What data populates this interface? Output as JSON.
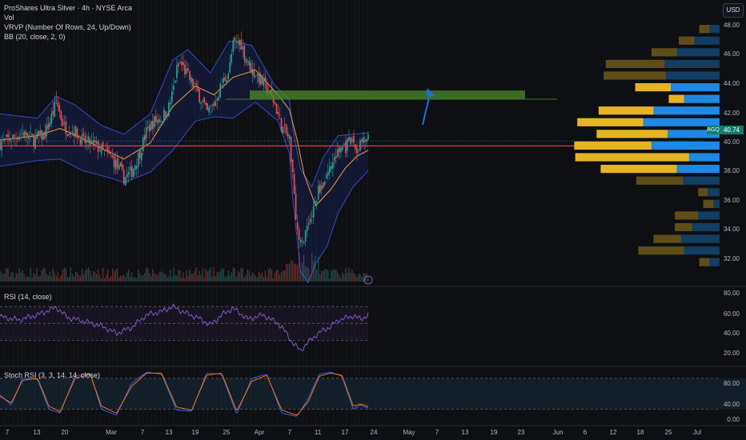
{
  "legend": {
    "title": "ProShares Ultra Silver · 4h · NYSE Arca",
    "vol": "Vol",
    "vrvp": "VRVP (Number Of Rows, 24, Up/Down)",
    "bb": "BB (20, close, 2, 0)",
    "rsi": "RSI (14, close)",
    "stoch": "Stoch RSI (3, 3, 14, 14, close)"
  },
  "currency_button": "USD",
  "last_price": {
    "ticker": "AGQ",
    "value": "40.74"
  },
  "colors": {
    "background": "#0e0f13",
    "up": "#26a69a",
    "down": "#ef5350",
    "bb_band": "#2f4cc7",
    "bb_basis": "#f39c3d",
    "profile_up": "#1e88e5",
    "profile_down": "#e6b422",
    "zone": "#4a8c2a",
    "hline": "#f23645",
    "arrow": "#1e6fd9",
    "rsi_line": "#7e57c2",
    "stoch_k": "#2962ff",
    "stoch_d": "#ff6d00"
  },
  "chart_data": [
    {
      "type": "candlestick",
      "title": "ProShares Ultra Silver · 4h · NYSE Arca",
      "ylim": [
        31.2,
        49.2
      ],
      "y_ticks": [
        "48.00",
        "46.00",
        "44.00",
        "42.00",
        "40.00",
        "38.00",
        "36.00",
        "34.00",
        "32.00"
      ],
      "x_ticks": [
        "7",
        "13",
        "20",
        "Mar",
        "7",
        "13",
        "19",
        "25",
        "Apr",
        "7",
        "11",
        "17",
        "24",
        "May",
        "7",
        "13",
        "19",
        "23",
        "Jun",
        "6",
        "12",
        "18",
        "25",
        "Jul"
      ],
      "close_path": [
        [
          0,
          40.6
        ],
        [
          3,
          40.9
        ],
        [
          6,
          41.3
        ],
        [
          9,
          40.8
        ],
        [
          12,
          41.2
        ],
        [
          14,
          42.6
        ],
        [
          15,
          43.5
        ],
        [
          17,
          41.7
        ],
        [
          20,
          41.4
        ],
        [
          22,
          40.7
        ],
        [
          25,
          40.5
        ],
        [
          27,
          40.1
        ],
        [
          30,
          39.5
        ],
        [
          33,
          38.2
        ],
        [
          35,
          38.6
        ],
        [
          37,
          39.8
        ],
        [
          39,
          41.4
        ],
        [
          41,
          42.1
        ],
        [
          43,
          42.3
        ],
        [
          45,
          43.1
        ],
        [
          46,
          44.1
        ],
        [
          47,
          45.6
        ],
        [
          48,
          46.1
        ],
        [
          50,
          45.2
        ],
        [
          52,
          44.3
        ],
        [
          54,
          43.4
        ],
        [
          55,
          42.6
        ],
        [
          57,
          43.3
        ],
        [
          59,
          44.6
        ],
        [
          61,
          45.6
        ],
        [
          62,
          47.3
        ],
        [
          64,
          47.6
        ],
        [
          65,
          46.7
        ],
        [
          67,
          45.6
        ],
        [
          69,
          45.1
        ],
        [
          71,
          44.3
        ],
        [
          73,
          43.4
        ],
        [
          75,
          41.7
        ],
        [
          77,
          40.9
        ],
        [
          78,
          38.4
        ],
        [
          79,
          34.8
        ],
        [
          80,
          33.6
        ],
        [
          81,
          34.1
        ],
        [
          82,
          35.3
        ],
        [
          83,
          35.6
        ],
        [
          84,
          36.6
        ],
        [
          85,
          37.6
        ],
        [
          86,
          37.8
        ],
        [
          87,
          38.6
        ],
        [
          88,
          38.9
        ],
        [
          89,
          39.6
        ],
        [
          90,
          39.9
        ],
        [
          91,
          40.4
        ],
        [
          92,
          40.3
        ],
        [
          93,
          40.6
        ],
        [
          94,
          40.7
        ],
        [
          95,
          40.0
        ],
        [
          96,
          40.7
        ],
        [
          97,
          40.6
        ],
        [
          98,
          40.74
        ]
      ],
      "bollinger": {
        "upper": [
          [
            0,
            42.6
          ],
          [
            10,
            42.3
          ],
          [
            15,
            43.8
          ],
          [
            20,
            43.2
          ],
          [
            27,
            41.8
          ],
          [
            33,
            41.2
          ],
          [
            40,
            42.6
          ],
          [
            46,
            46.3
          ],
          [
            50,
            47.0
          ],
          [
            56,
            45.4
          ],
          [
            61,
            47.6
          ],
          [
            67,
            47.3
          ],
          [
            73,
            44.6
          ],
          [
            77,
            43.6
          ],
          [
            78,
            41.5
          ],
          [
            80,
            38.8
          ],
          [
            83,
            37.6
          ],
          [
            86,
            39.6
          ],
          [
            90,
            41.1
          ],
          [
            94,
            41.2
          ],
          [
            98,
            41.3
          ]
        ],
        "basis": [
          [
            0,
            40.8
          ],
          [
            10,
            41.1
          ],
          [
            16,
            41.6
          ],
          [
            22,
            40.9
          ],
          [
            28,
            40.1
          ],
          [
            33,
            39.5
          ],
          [
            40,
            40.6
          ],
          [
            46,
            43.1
          ],
          [
            52,
            44.5
          ],
          [
            57,
            43.9
          ],
          [
            62,
            45.1
          ],
          [
            68,
            45.6
          ],
          [
            74,
            43.9
          ],
          [
            77,
            42.9
          ],
          [
            79,
            40.9
          ],
          [
            81,
            38.4
          ],
          [
            84,
            36.3
          ],
          [
            88,
            37.4
          ],
          [
            92,
            38.9
          ],
          [
            95,
            39.7
          ],
          [
            98,
            40.1
          ]
        ],
        "lower": [
          [
            0,
            39.0
          ],
          [
            10,
            39.4
          ],
          [
            16,
            39.5
          ],
          [
            22,
            38.7
          ],
          [
            28,
            38.3
          ],
          [
            33,
            37.9
          ],
          [
            40,
            38.6
          ],
          [
            46,
            40.1
          ],
          [
            52,
            42.1
          ],
          [
            57,
            42.4
          ],
          [
            62,
            42.3
          ],
          [
            68,
            43.4
          ],
          [
            74,
            42.1
          ],
          [
            77,
            39.9
          ],
          [
            78,
            36.6
          ],
          [
            80,
            31.8
          ],
          [
            82,
            31.0
          ],
          [
            84,
            32.3
          ],
          [
            87,
            33.5
          ],
          [
            90,
            35.8
          ],
          [
            94,
            37.6
          ],
          [
            98,
            38.7
          ]
        ]
      },
      "horizontal_line": 40.4,
      "zone": {
        "from": 43.6,
        "to": 44.2
      },
      "current_price": 40.74
    },
    {
      "type": "bar",
      "title": "VRVP (Number Of Rows, 24, Up/Down)",
      "categories": [
        "48.4",
        "47.6",
        "46.8",
        "46.0",
        "45.2",
        "44.4",
        "43.6",
        "42.8",
        "42.0",
        "41.2",
        "40.4",
        "39.6",
        "38.8",
        "38.0",
        "37.2",
        "36.4",
        "35.6",
        "34.8",
        "34.0",
        "33.2",
        "32.4"
      ],
      "series": [
        {
          "name": "Up",
          "values": [
            1.0,
            2.5,
            4.2,
            5.4,
            5.3,
            4.8,
            3.5,
            6.5,
            7.5,
            5.1,
            6.7,
            3.0,
            4.2,
            3.6,
            1.2,
            0.6,
            2.1,
            2.7,
            3.8,
            3.5,
            1.0
          ]
        },
        {
          "name": "Down",
          "values": [
            1.0,
            1.5,
            2.5,
            5.8,
            6.1,
            3.5,
            1.5,
            5.4,
            6.5,
            7.0,
            7.6,
            11.2,
            7.5,
            4.6,
            0.9,
            1.0,
            2.3,
            1.7,
            2.7,
            4.5,
            1.0
          ]
        }
      ]
    },
    {
      "type": "line",
      "title": "RSI (14, close)",
      "ylim": [
        0,
        90
      ],
      "y_ticks": [
        "80.00",
        "60.00",
        "40.00",
        "20.00"
      ],
      "bands": [
        30,
        50,
        70
      ],
      "values": [
        [
          0,
          58
        ],
        [
          5,
          54
        ],
        [
          10,
          60
        ],
        [
          15,
          69
        ],
        [
          18,
          57
        ],
        [
          22,
          53
        ],
        [
          27,
          47
        ],
        [
          31,
          38
        ],
        [
          35,
          45
        ],
        [
          39,
          60
        ],
        [
          43,
          64
        ],
        [
          46,
          70
        ],
        [
          49,
          63
        ],
        [
          53,
          56
        ],
        [
          56,
          48
        ],
        [
          59,
          60
        ],
        [
          62,
          68
        ],
        [
          66,
          55
        ],
        [
          70,
          60
        ],
        [
          74,
          50
        ],
        [
          76,
          40
        ],
        [
          78,
          26
        ],
        [
          80,
          18
        ],
        [
          83,
          32
        ],
        [
          86,
          42
        ],
        [
          88,
          46
        ],
        [
          90,
          54
        ],
        [
          92,
          56
        ],
        [
          94,
          59
        ],
        [
          96,
          55
        ],
        [
          98,
          60
        ]
      ]
    },
    {
      "type": "line",
      "title": "Stoch RSI (3, 3, 14, 14, close)",
      "ylim": [
        -12,
        100
      ],
      "y_ticks": [
        "80.00",
        "40.00",
        "0.00"
      ],
      "bands": [
        20,
        80
      ],
      "series": [
        {
          "name": "K",
          "values": [
            [
              0,
              48
            ],
            [
              3,
              28
            ],
            [
              6,
              80
            ],
            [
              10,
              78
            ],
            [
              13,
              20
            ],
            [
              16,
              12
            ],
            [
              20,
              85
            ],
            [
              24,
              90
            ],
            [
              27,
              20
            ],
            [
              31,
              8
            ],
            [
              35,
              70
            ],
            [
              39,
              92
            ],
            [
              43,
              88
            ],
            [
              47,
              18
            ],
            [
              51,
              16
            ],
            [
              55,
              90
            ],
            [
              59,
              88
            ],
            [
              63,
              10
            ],
            [
              67,
              80
            ],
            [
              71,
              88
            ],
            [
              75,
              12
            ],
            [
              79,
              6
            ],
            [
              82,
              40
            ],
            [
              85,
              88
            ],
            [
              88,
              92
            ],
            [
              91,
              84
            ],
            [
              94,
              20
            ],
            [
              96,
              28
            ],
            [
              98,
              22
            ]
          ]
        },
        {
          "name": "D",
          "values": [
            [
              0,
              45
            ],
            [
              3,
              32
            ],
            [
              6,
              76
            ],
            [
              10,
              80
            ],
            [
              13,
              26
            ],
            [
              16,
              15
            ],
            [
              20,
              80
            ],
            [
              24,
              88
            ],
            [
              27,
              26
            ],
            [
              31,
              12
            ],
            [
              35,
              64
            ],
            [
              39,
              90
            ],
            [
              43,
              90
            ],
            [
              47,
              24
            ],
            [
              51,
              18
            ],
            [
              55,
              86
            ],
            [
              59,
              90
            ],
            [
              63,
              16
            ],
            [
              67,
              74
            ],
            [
              71,
              86
            ],
            [
              75,
              18
            ],
            [
              79,
              8
            ],
            [
              82,
              34
            ],
            [
              85,
              84
            ],
            [
              88,
              90
            ],
            [
              91,
              86
            ],
            [
              94,
              26
            ],
            [
              96,
              30
            ],
            [
              98,
              25
            ]
          ]
        }
      ]
    }
  ]
}
